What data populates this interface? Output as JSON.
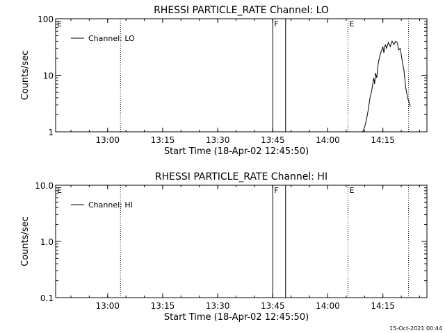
{
  "chart_data": [
    {
      "type": "line",
      "title": "RHESSI PARTICLE_RATE Channel: LO",
      "xlabel": "Start Time (18-Apr-02 12:45:50)",
      "ylabel": "Counts/sec",
      "yscale": "log",
      "xlim": [
        "12:45:50",
        "14:27:00"
      ],
      "ylim": [
        1,
        100
      ],
      "x_ticks": [
        "13:00",
        "13:15",
        "13:30",
        "13:45",
        "14:00",
        "14:15"
      ],
      "y_ticks": [
        "1",
        "10",
        "100"
      ],
      "legend": {
        "position": "top-left",
        "entries": [
          "Channel: LO"
        ]
      },
      "markers": [
        {
          "label": "E",
          "time": "12:45:50",
          "style": "dotted"
        },
        {
          "label": "",
          "time": "13:03:30",
          "style": "dotted"
        },
        {
          "label": "F",
          "time": "13:45:00",
          "style": "solid"
        },
        {
          "label": "",
          "time": "13:48:30",
          "style": "solid"
        },
        {
          "label": "E",
          "time": "14:05:30",
          "style": "dotted"
        },
        {
          "label": "",
          "time": "14:22:00",
          "style": "dotted"
        }
      ],
      "series": [
        {
          "name": "Channel: LO",
          "points": [
            [
              "14:09:30",
              1.0
            ],
            [
              "14:10:00",
              1.2
            ],
            [
              "14:10:30",
              1.6
            ],
            [
              "14:11:00",
              2.4
            ],
            [
              "14:11:30",
              4.0
            ],
            [
              "14:12:00",
              5.5
            ],
            [
              "14:12:30",
              9.0
            ],
            [
              "14:12:45",
              7.0
            ],
            [
              "14:13:00",
              11.0
            ],
            [
              "14:13:20",
              9.0
            ],
            [
              "14:13:40",
              15.0
            ],
            [
              "14:14:00",
              20.0
            ],
            [
              "14:14:30",
              26.0
            ],
            [
              "14:15:00",
              32.0
            ],
            [
              "14:15:15",
              25.0
            ],
            [
              "14:15:40",
              35.0
            ],
            [
              "14:16:00",
              30.0
            ],
            [
              "14:16:30",
              38.0
            ],
            [
              "14:17:00",
              32.0
            ],
            [
              "14:17:30",
              40.0
            ],
            [
              "14:18:00",
              35.0
            ],
            [
              "14:18:30",
              40.0
            ],
            [
              "14:19:00",
              37.0
            ],
            [
              "14:19:15",
              28.0
            ],
            [
              "14:19:45",
              30.0
            ],
            [
              "14:20:15",
              18.0
            ],
            [
              "14:20:45",
              12.0
            ],
            [
              "14:21:15",
              6.0
            ],
            [
              "14:21:45",
              4.0
            ],
            [
              "14:22:30",
              2.8
            ]
          ]
        }
      ]
    },
    {
      "type": "line",
      "title": "RHESSI PARTICLE_RATE Channel: HI",
      "xlabel": "Start Time (18-Apr-02 12:45:50)",
      "ylabel": "Counts/sec",
      "yscale": "log",
      "xlim": [
        "12:45:50",
        "14:27:00"
      ],
      "ylim": [
        0.1,
        10
      ],
      "x_ticks": [
        "13:00",
        "13:15",
        "13:30",
        "13:45",
        "14:00",
        "14:15"
      ],
      "y_ticks": [
        "0.1",
        "1.0",
        "10.0"
      ],
      "legend": {
        "position": "top-left",
        "entries": [
          "Channel: HI"
        ]
      },
      "markers": [
        {
          "label": "E",
          "time": "12:45:50",
          "style": "dotted"
        },
        {
          "label": "",
          "time": "13:03:30",
          "style": "dotted"
        },
        {
          "label": "F",
          "time": "13:45:00",
          "style": "solid"
        },
        {
          "label": "",
          "time": "13:48:30",
          "style": "solid"
        },
        {
          "label": "E",
          "time": "14:05:30",
          "style": "dotted"
        },
        {
          "label": "",
          "time": "14:22:00",
          "style": "dotted"
        }
      ],
      "series": [
        {
          "name": "Channel: HI",
          "points": []
        }
      ]
    }
  ],
  "footer": {
    "timestamp": "15-Oct-2021 00:44"
  }
}
